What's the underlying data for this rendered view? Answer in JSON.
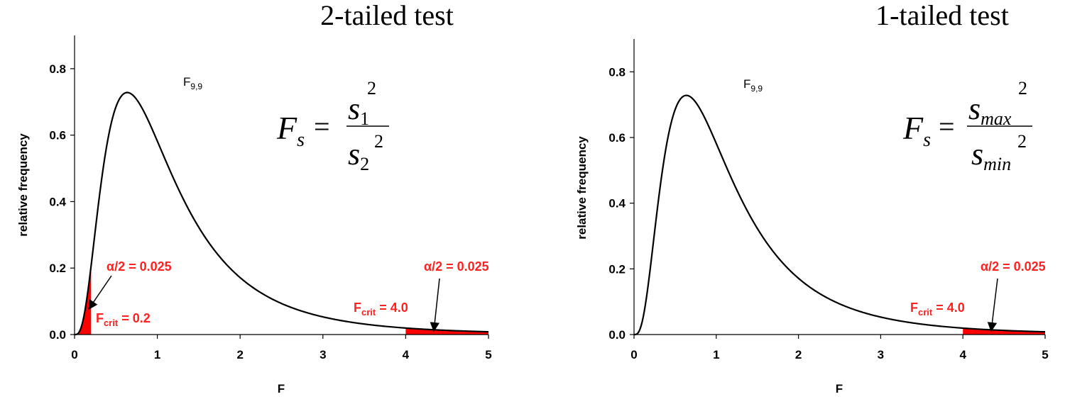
{
  "colors": {
    "curve": "#000000",
    "reject_region": "#ff0000",
    "annotation": "#ff2020"
  },
  "chart_data": [
    {
      "type": "line",
      "title": "2-tailed test",
      "xlabel": "F",
      "ylabel": "relative frequency",
      "xlim": [
        0,
        5
      ],
      "ylim": [
        0,
        0.9
      ],
      "xticks": [
        "0",
        "1",
        "2",
        "3",
        "4",
        "5"
      ],
      "yticks": [
        "0.0",
        "0.2",
        "0.4",
        "0.6",
        "0.8"
      ],
      "grid": false,
      "distribution": {
        "label": "F",
        "sub": "9,9",
        "df1": 9,
        "df2": 9
      },
      "formula": {
        "lhs": "F",
        "lhs_sub": "s",
        "num": "s",
        "num_sub": "1",
        "num_sup": "2",
        "den": "s",
        "den_sub": "2",
        "den_sup": "2"
      },
      "series": [
        {
          "x": [
            0.0,
            0.1,
            0.2,
            0.3,
            0.4,
            0.5,
            0.6,
            0.7,
            0.8,
            0.9,
            1.0,
            1.2,
            1.4,
            1.6,
            1.8,
            2.0,
            2.25,
            2.5,
            2.75,
            3.0,
            3.5,
            4.0,
            4.5,
            5.0
          ],
          "y": [
            0.0,
            0.0474,
            0.2524,
            0.4924,
            0.6508,
            0.7204,
            0.7282,
            0.7035,
            0.6618,
            0.6131,
            0.5629,
            0.4678,
            0.3855,
            0.317,
            0.261,
            0.2157,
            0.1695,
            0.1341,
            0.1069,
            0.0859,
            0.0566,
            0.0382,
            0.0265,
            0.0187
          ]
        }
      ],
      "rejection_regions": [
        {
          "from": 0.0,
          "to": 0.2
        },
        {
          "from": 4.0,
          "to": 5.0
        }
      ],
      "annotations": [
        {
          "alpha_text": "α/2 = 0.025",
          "crit_prefix": "F",
          "crit_sub": "crit",
          "crit_value": " = 0.2",
          "arrow_to": [
            0.2,
            0.08
          ]
        },
        {
          "alpha_text": "α/2 = 0.025",
          "crit_prefix": "F",
          "crit_sub": "crit",
          "crit_value": " = 4.0",
          "arrow_to": [
            4.35,
            0.005
          ]
        }
      ]
    },
    {
      "type": "line",
      "title": "1-tailed test",
      "xlabel": "F",
      "ylabel": "relative frequency",
      "xlim": [
        0,
        5
      ],
      "ylim": [
        0,
        0.9
      ],
      "xticks": [
        "0",
        "1",
        "2",
        "3",
        "4",
        "5"
      ],
      "yticks": [
        "0.0",
        "0.2",
        "0.4",
        "0.6",
        "0.8"
      ],
      "grid": false,
      "distribution": {
        "label": "F",
        "sub": "9,9",
        "df1": 9,
        "df2": 9
      },
      "formula": {
        "lhs": "F",
        "lhs_sub": "s",
        "num": "s",
        "num_sub": "max",
        "num_sup": "2",
        "den": "s",
        "den_sub": "min",
        "den_sup": "2"
      },
      "series": [
        {
          "x": [
            0.0,
            0.1,
            0.2,
            0.3,
            0.4,
            0.5,
            0.6,
            0.7,
            0.8,
            0.9,
            1.0,
            1.2,
            1.4,
            1.6,
            1.8,
            2.0,
            2.25,
            2.5,
            2.75,
            3.0,
            3.5,
            4.0,
            4.5,
            5.0
          ],
          "y": [
            0.0,
            0.0474,
            0.2524,
            0.4924,
            0.6508,
            0.7204,
            0.7282,
            0.7035,
            0.6618,
            0.6131,
            0.5629,
            0.4678,
            0.3855,
            0.317,
            0.261,
            0.2157,
            0.1695,
            0.1341,
            0.1069,
            0.0859,
            0.0566,
            0.0382,
            0.0265,
            0.0187
          ]
        }
      ],
      "rejection_regions": [
        {
          "from": 4.0,
          "to": 5.0
        }
      ],
      "annotations": [
        {
          "alpha_text": "α/2 = 0.025",
          "crit_prefix": "F",
          "crit_sub": "crit",
          "crit_value": " = 4.0",
          "arrow_to": [
            4.35,
            0.005
          ]
        }
      ]
    }
  ]
}
